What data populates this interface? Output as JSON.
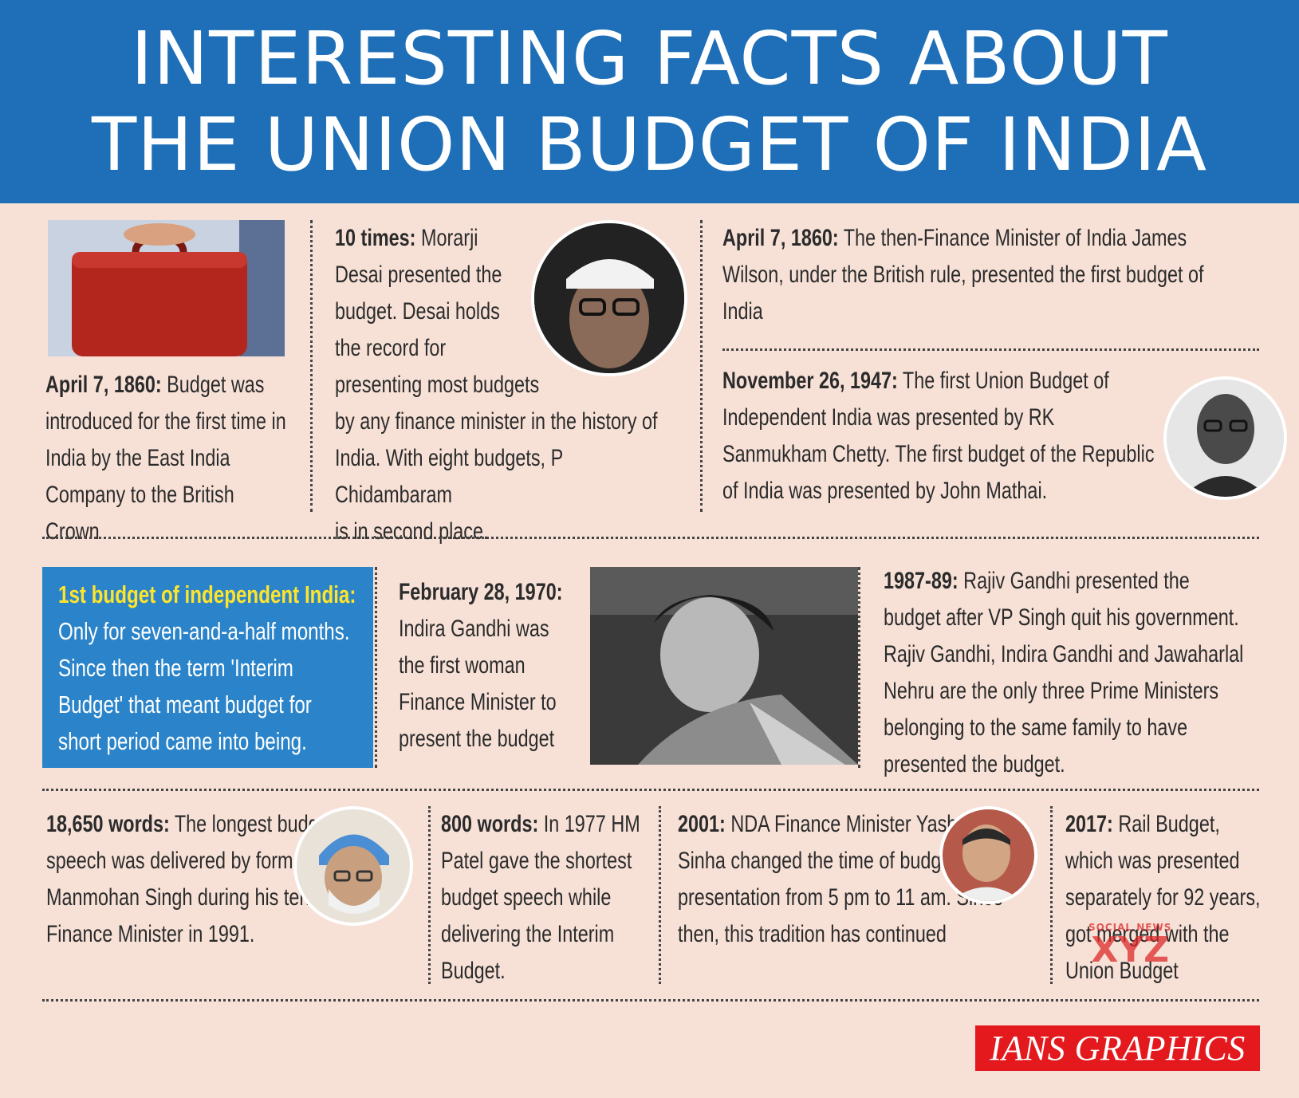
{
  "header": {
    "line1": "INTERESTING FACTS ABOUT",
    "line2": "THE UNION BUDGET OF INDIA"
  },
  "facts": {
    "briefcase": {
      "bold": "April 7, 1860:",
      "text": " Budget was introduced for the first time in India by the East India Company to the British Crown"
    },
    "desai_l1": {
      "bold": "10 times:",
      "text": " Morarji"
    },
    "desai_l2": "Desai presented the",
    "desai_l3": "budget. Desai holds",
    "desai_l4": "the record for",
    "desai_l5": "presenting most budgets",
    "desai_l6": "by any finance minister in the history of",
    "desai_l7": "India. With eight budgets, P Chidambaram",
    "desai_l8": "is in second place.",
    "wilson": {
      "bold": "April 7, 1860:",
      "text": " The then-Finance Minister of India James Wilson, under the British rule, presented the first budget of India"
    },
    "chetty": {
      "bold": "November 26, 1947:",
      "text": " The first Union Budget of Independent India was presented by RK Sanmukham Chetty. The first budget of the Republic of India was presented by John Mathai."
    },
    "interim": {
      "highlight": "1st budget of independent India:",
      "text": " Only for seven-and-a-half months. Since then the term 'Interim Budget' that meant budget for short period came into being."
    },
    "indira": {
      "bold": "February 28, 1970:",
      "text": " Indira Gandhi was the first woman Finance Minister to present the budget"
    },
    "rajiv": {
      "bold": "1987-89:",
      "text": " Rajiv Gandhi presented the budget after VP Singh quit his government. Rajiv Gandhi, Indira Gandhi and Jawaharlal Nehru are the only three Prime Ministers belonging to the same family to have presented the budget."
    },
    "manmohan": {
      "bold": "18,650 words:",
      "text": " The longest budget speech was delivered by former PM Dr Manmohan Singh during his tenure as Finance Minister in 1991."
    },
    "patel": {
      "bold": "800 words:",
      "text": " In 1977 HM Patel gave the shortest budget speech while delivering the Interim Budget."
    },
    "sinha": {
      "bold": "2001:",
      "text": " NDA Finance Minister Yashwant Sinha changed the time of budget presentation from 5 pm to 11 am. Since then, this tradition has continued"
    },
    "rail": {
      "bold": "2017:",
      "text": " Rail Budget, which was presented separately for 92 years, got merged with the Union Budget"
    }
  },
  "credit": "IANS GRAPHICS",
  "watermark": {
    "small": "SOCIAL NEWS",
    "big": "XYZ"
  },
  "colors": {
    "header_bg": "#1e6fb7",
    "page_bg": "#f7e1d7",
    "box_bg": "#2b84c9",
    "highlight": "#ffe42b",
    "credit_bg": "#e3191e"
  }
}
